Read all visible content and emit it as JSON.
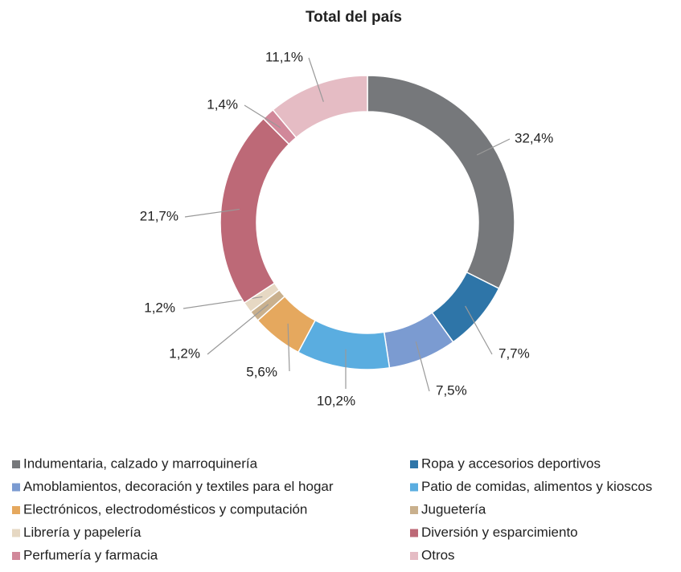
{
  "chart_data": {
    "type": "donut",
    "title": "Total del país",
    "categories": [
      "Indumentaria, calzado y marroquinería",
      "Ropa y accesorios deportivos",
      "Amoblamientos, decoración y textiles para el hogar",
      "Patio de comidas, alimentos y kioscos",
      "Electrónicos, electrodomésticos y computación",
      "Juguetería",
      "Librería y papelería",
      "Diversión y esparcimiento",
      "Perfumería y farmacia",
      "Otros"
    ],
    "values": [
      32.4,
      7.7,
      7.5,
      10.2,
      5.6,
      1.2,
      1.2,
      21.7,
      1.4,
      11.1
    ],
    "value_labels": [
      "32,4%",
      "7,7%",
      "7,5%",
      "10,2%",
      "5,6%",
      "1,2%",
      "1,2%",
      "21,7%",
      "1,4%",
      "11,1%"
    ],
    "colors": [
      "#76787b",
      "#2e75a8",
      "#7b9bd1",
      "#5aade0",
      "#e5a85e",
      "#c9b08d",
      "#e6d8c3",
      "#bd6977",
      "#d1889a",
      "#e5bcc4"
    ]
  }
}
